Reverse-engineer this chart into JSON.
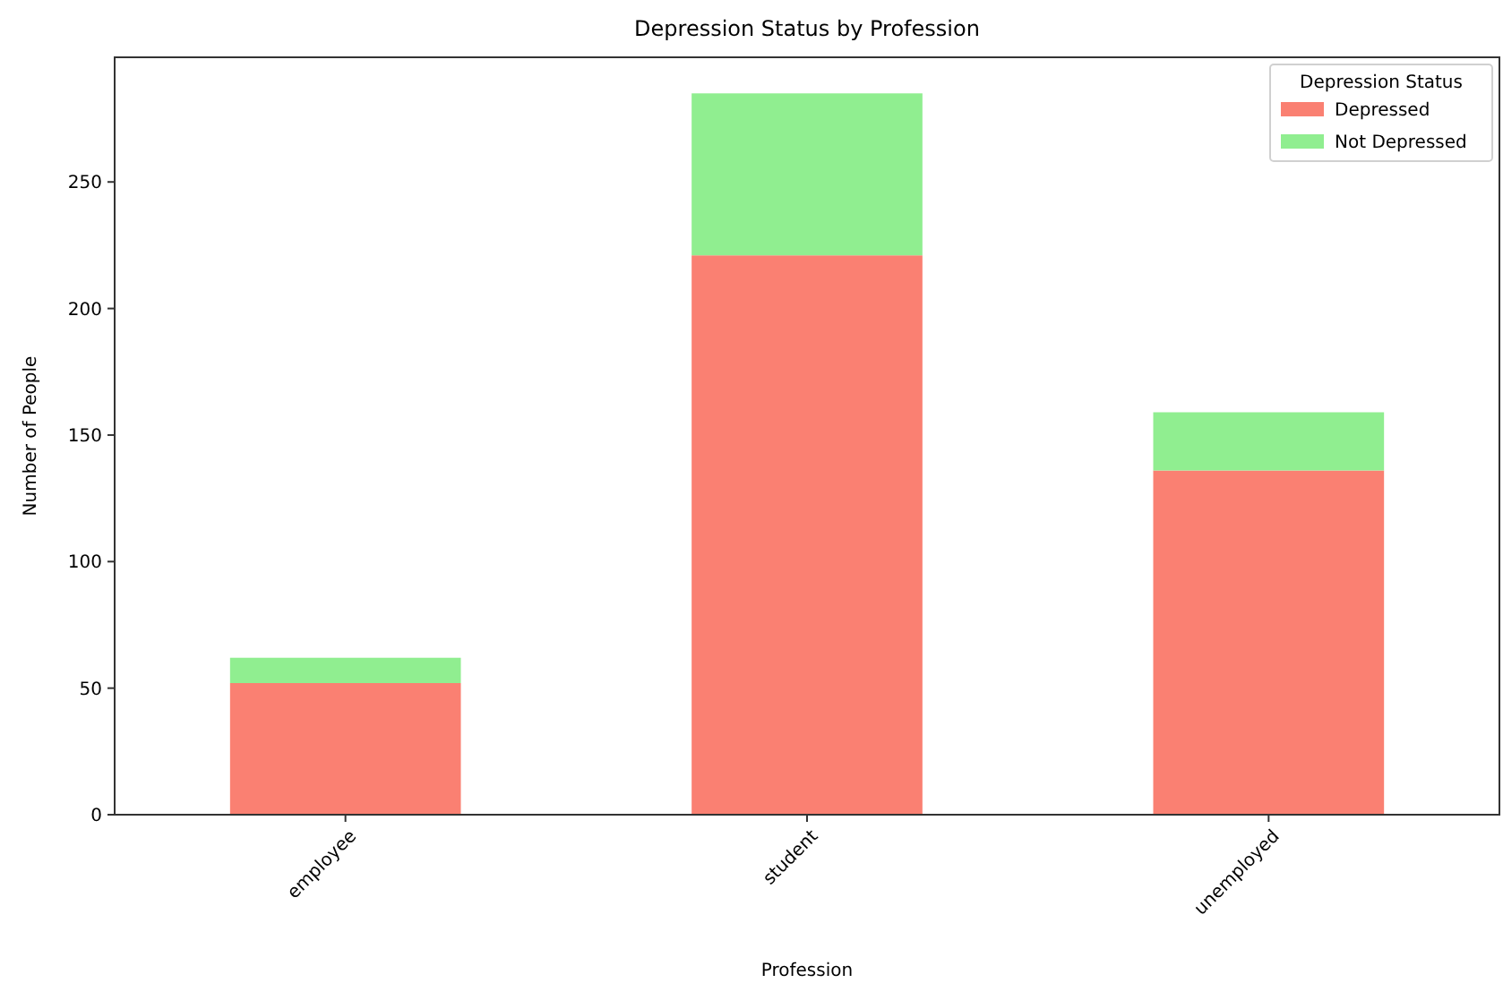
{
  "chart_data": {
    "type": "bar",
    "title": "Depression Status by Profession",
    "xlabel": "Profession",
    "ylabel": "Number of People",
    "legend_title": "Depression Status",
    "categories": [
      "employee",
      "student",
      "unemployed"
    ],
    "series": [
      {
        "name": "Depressed",
        "color": "#fa8072",
        "values": [
          52,
          221,
          136
        ]
      },
      {
        "name": "Not Depressed",
        "color": "#90ee90",
        "values": [
          10,
          64,
          23
        ]
      }
    ],
    "stacked": true,
    "ylim": [
      0,
      299.25
    ],
    "yticks": [
      0,
      50,
      100,
      150,
      200,
      250
    ],
    "grid": false,
    "legend": "top right"
  }
}
